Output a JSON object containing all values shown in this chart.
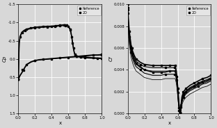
{
  "left": {
    "xlabel": "x",
    "ylabel": "Cp",
    "xlim": [
      0.0,
      1.0
    ],
    "ylim": [
      1.5,
      -1.5
    ],
    "xticks": [
      0.0,
      0.2,
      0.4,
      0.6,
      0.8,
      1.0
    ],
    "yticks": [
      -1.5,
      -1.0,
      -0.5,
      0.0,
      0.5,
      1.0,
      1.5
    ],
    "upper_surface": [
      [
        0.0,
        0.55
      ],
      [
        0.005,
        -0.1
      ],
      [
        0.01,
        -0.45
      ],
      [
        0.02,
        -0.62
      ],
      [
        0.04,
        -0.73
      ],
      [
        0.06,
        -0.77
      ],
      [
        0.08,
        -0.8
      ],
      [
        0.1,
        -0.82
      ],
      [
        0.15,
        -0.85
      ],
      [
        0.2,
        -0.87
      ],
      [
        0.25,
        -0.88
      ],
      [
        0.3,
        -0.89
      ],
      [
        0.35,
        -0.895
      ],
      [
        0.4,
        -0.9
      ],
      [
        0.42,
        -0.905
      ],
      [
        0.44,
        -0.91
      ],
      [
        0.46,
        -0.915
      ],
      [
        0.48,
        -0.92
      ],
      [
        0.5,
        -0.925
      ],
      [
        0.52,
        -0.93
      ],
      [
        0.54,
        -0.935
      ],
      [
        0.56,
        -0.94
      ],
      [
        0.58,
        -0.93
      ],
      [
        0.6,
        -0.9
      ],
      [
        0.62,
        -0.82
      ],
      [
        0.63,
        -0.73
      ],
      [
        0.64,
        -0.6
      ],
      [
        0.65,
        -0.45
      ],
      [
        0.66,
        -0.3
      ],
      [
        0.67,
        -0.18
      ],
      [
        0.68,
        -0.12
      ],
      [
        0.7,
        -0.08
      ],
      [
        0.75,
        -0.06
      ],
      [
        0.8,
        -0.05
      ],
      [
        0.85,
        -0.04
      ],
      [
        0.9,
        -0.03
      ],
      [
        0.95,
        -0.025
      ],
      [
        1.0,
        -0.02
      ]
    ],
    "lower_surface": [
      [
        0.0,
        0.55
      ],
      [
        0.01,
        0.5
      ],
      [
        0.02,
        0.45
      ],
      [
        0.04,
        0.38
      ],
      [
        0.06,
        0.3
      ],
      [
        0.08,
        0.22
      ],
      [
        0.1,
        0.15
      ],
      [
        0.15,
        0.08
      ],
      [
        0.2,
        0.04
      ],
      [
        0.25,
        0.02
      ],
      [
        0.3,
        0.01
      ],
      [
        0.35,
        0.0
      ],
      [
        0.4,
        -0.01
      ],
      [
        0.45,
        -0.02
      ],
      [
        0.5,
        -0.03
      ],
      [
        0.55,
        -0.04
      ],
      [
        0.6,
        -0.05
      ],
      [
        0.65,
        -0.06
      ],
      [
        0.7,
        -0.07
      ],
      [
        0.75,
        -0.08
      ],
      [
        0.8,
        -0.09
      ],
      [
        0.85,
        -0.1
      ],
      [
        0.9,
        -0.11
      ],
      [
        0.95,
        -0.11
      ],
      [
        1.0,
        -0.12
      ]
    ],
    "upper_surface2": [
      [
        0.0,
        0.55
      ],
      [
        0.005,
        -0.08
      ],
      [
        0.01,
        -0.43
      ],
      [
        0.02,
        -0.6
      ],
      [
        0.04,
        -0.71
      ],
      [
        0.06,
        -0.75
      ],
      [
        0.08,
        -0.78
      ],
      [
        0.1,
        -0.8
      ],
      [
        0.15,
        -0.83
      ],
      [
        0.2,
        -0.85
      ],
      [
        0.25,
        -0.86
      ],
      [
        0.3,
        -0.87
      ],
      [
        0.35,
        -0.875
      ],
      [
        0.4,
        -0.88
      ],
      [
        0.42,
        -0.885
      ],
      [
        0.44,
        -0.89
      ],
      [
        0.46,
        -0.895
      ],
      [
        0.48,
        -0.9
      ],
      [
        0.5,
        -0.905
      ],
      [
        0.52,
        -0.91
      ],
      [
        0.54,
        -0.915
      ],
      [
        0.56,
        -0.92
      ],
      [
        0.58,
        -0.91
      ],
      [
        0.6,
        -0.88
      ],
      [
        0.62,
        -0.8
      ],
      [
        0.63,
        -0.71
      ],
      [
        0.64,
        -0.58
      ],
      [
        0.65,
        -0.43
      ],
      [
        0.66,
        -0.28
      ],
      [
        0.67,
        -0.16
      ],
      [
        0.68,
        -0.1
      ],
      [
        0.7,
        -0.06
      ],
      [
        0.75,
        -0.04
      ],
      [
        0.8,
        -0.03
      ],
      [
        0.85,
        -0.02
      ],
      [
        0.9,
        -0.015
      ],
      [
        0.95,
        -0.01
      ],
      [
        1.0,
        -0.005
      ]
    ],
    "lower_surface2": [
      [
        0.0,
        0.55
      ],
      [
        0.01,
        0.51
      ],
      [
        0.02,
        0.46
      ],
      [
        0.04,
        0.39
      ],
      [
        0.06,
        0.31
      ],
      [
        0.08,
        0.23
      ],
      [
        0.1,
        0.16
      ],
      [
        0.15,
        0.09
      ],
      [
        0.2,
        0.05
      ],
      [
        0.25,
        0.03
      ],
      [
        0.3,
        0.02
      ],
      [
        0.35,
        0.01
      ],
      [
        0.4,
        0.0
      ],
      [
        0.45,
        -0.01
      ],
      [
        0.5,
        -0.02
      ],
      [
        0.55,
        -0.03
      ],
      [
        0.6,
        -0.04
      ],
      [
        0.65,
        -0.05
      ],
      [
        0.7,
        -0.06
      ],
      [
        0.75,
        -0.07
      ],
      [
        0.8,
        -0.08
      ],
      [
        0.85,
        -0.09
      ],
      [
        0.9,
        -0.1
      ],
      [
        0.95,
        -0.1
      ],
      [
        1.0,
        -0.11
      ]
    ],
    "ref_x_upper": [
      0.0,
      0.05,
      0.1,
      0.15,
      0.2,
      0.25,
      0.3,
      0.35,
      0.4,
      0.45,
      0.5,
      0.55,
      0.58,
      0.6,
      0.62,
      0.64,
      0.66,
      0.68,
      0.7,
      0.75,
      0.8,
      0.9,
      1.0
    ],
    "ref_y_upper": [
      0.55,
      -0.72,
      -0.82,
      -0.85,
      -0.87,
      -0.88,
      -0.89,
      -0.895,
      -0.9,
      -0.915,
      -0.93,
      -0.935,
      -0.93,
      -0.9,
      -0.82,
      -0.6,
      -0.3,
      -0.12,
      -0.08,
      -0.06,
      -0.05,
      -0.03,
      -0.02
    ],
    "ref_x_lower": [
      0.0,
      0.05,
      0.1,
      0.2,
      0.3,
      0.5,
      0.7,
      0.9,
      1.0
    ],
    "ref_y_lower": [
      0.55,
      0.3,
      0.15,
      0.04,
      0.01,
      -0.03,
      -0.07,
      -0.11,
      -0.12
    ]
  },
  "right": {
    "xlabel": "x",
    "ylabel": "Cf",
    "xlim": [
      0.0,
      1.0
    ],
    "ylim": [
      0.0,
      0.01
    ],
    "xticks": [
      0.0,
      0.2,
      0.4,
      0.6,
      0.8,
      1.0
    ],
    "yticks": [
      0.0,
      0.002,
      0.004,
      0.006,
      0.008,
      0.01
    ],
    "ytick_labels": [
      "0.000",
      "0.002",
      "0.004",
      "0.006",
      "0.008",
      "0.010"
    ],
    "upper1": [
      [
        0.0,
        0.01
      ],
      [
        0.005,
        0.0092
      ],
      [
        0.01,
        0.0085
      ],
      [
        0.02,
        0.0075
      ],
      [
        0.04,
        0.0063
      ],
      [
        0.06,
        0.0057
      ],
      [
        0.08,
        0.0053
      ],
      [
        0.1,
        0.005
      ],
      [
        0.15,
        0.0047
      ],
      [
        0.2,
        0.0045
      ],
      [
        0.3,
        0.0044
      ],
      [
        0.4,
        0.0044
      ],
      [
        0.45,
        0.0044
      ],
      [
        0.5,
        0.0044
      ],
      [
        0.52,
        0.0044
      ],
      [
        0.54,
        0.0044
      ],
      [
        0.56,
        0.0044
      ],
      [
        0.57,
        0.0044
      ],
      [
        0.58,
        0.004
      ],
      [
        0.59,
        0.0034
      ],
      [
        0.6,
        0.0025
      ],
      [
        0.61,
        0.0014
      ],
      [
        0.62,
        0.0005
      ],
      [
        0.625,
        0.0001
      ],
      [
        0.63,
        0.0001
      ],
      [
        0.635,
        0.0003
      ],
      [
        0.64,
        0.0008
      ],
      [
        0.65,
        0.0015
      ],
      [
        0.67,
        0.002
      ],
      [
        0.7,
        0.0023
      ],
      [
        0.75,
        0.0026
      ],
      [
        0.8,
        0.0028
      ],
      [
        0.85,
        0.003
      ],
      [
        0.9,
        0.0032
      ],
      [
        0.95,
        0.0033
      ],
      [
        1.0,
        0.0035
      ]
    ],
    "upper2": [
      [
        0.0,
        0.0097
      ],
      [
        0.005,
        0.0089
      ],
      [
        0.01,
        0.0082
      ],
      [
        0.02,
        0.0072
      ],
      [
        0.04,
        0.0061
      ],
      [
        0.06,
        0.0055
      ],
      [
        0.08,
        0.0051
      ],
      [
        0.1,
        0.0048
      ],
      [
        0.15,
        0.0045
      ],
      [
        0.2,
        0.0043
      ],
      [
        0.3,
        0.0042
      ],
      [
        0.4,
        0.0042
      ],
      [
        0.45,
        0.0042
      ],
      [
        0.5,
        0.0042
      ],
      [
        0.52,
        0.0042
      ],
      [
        0.54,
        0.0042
      ],
      [
        0.56,
        0.0042
      ],
      [
        0.57,
        0.0042
      ],
      [
        0.58,
        0.0038
      ],
      [
        0.59,
        0.0032
      ],
      [
        0.6,
        0.0023
      ],
      [
        0.61,
        0.0012
      ],
      [
        0.62,
        0.0004
      ],
      [
        0.625,
        0.0001
      ],
      [
        0.63,
        0.0001
      ],
      [
        0.635,
        0.0003
      ],
      [
        0.64,
        0.0007
      ],
      [
        0.65,
        0.0013
      ],
      [
        0.67,
        0.0018
      ],
      [
        0.7,
        0.0021
      ],
      [
        0.75,
        0.0024
      ],
      [
        0.8,
        0.0026
      ],
      [
        0.85,
        0.0028
      ],
      [
        0.9,
        0.003
      ],
      [
        0.95,
        0.0031
      ],
      [
        1.0,
        0.0033
      ]
    ],
    "upper3": [
      [
        0.0,
        0.0094
      ],
      [
        0.005,
        0.0086
      ],
      [
        0.01,
        0.0079
      ],
      [
        0.02,
        0.0069
      ],
      [
        0.04,
        0.0058
      ],
      [
        0.06,
        0.0052
      ],
      [
        0.08,
        0.0048
      ],
      [
        0.1,
        0.0045
      ],
      [
        0.15,
        0.0042
      ],
      [
        0.2,
        0.004
      ],
      [
        0.3,
        0.0039
      ],
      [
        0.4,
        0.0039
      ],
      [
        0.45,
        0.0039
      ],
      [
        0.5,
        0.0039
      ],
      [
        0.52,
        0.0039
      ],
      [
        0.54,
        0.0039
      ],
      [
        0.56,
        0.0039
      ],
      [
        0.57,
        0.0039
      ],
      [
        0.58,
        0.0035
      ],
      [
        0.59,
        0.0029
      ],
      [
        0.6,
        0.002
      ],
      [
        0.61,
        0.001
      ],
      [
        0.62,
        0.0003
      ],
      [
        0.625,
        0.0001
      ],
      [
        0.63,
        0.0001
      ],
      [
        0.635,
        0.0002
      ],
      [
        0.64,
        0.0006
      ],
      [
        0.65,
        0.0011
      ],
      [
        0.67,
        0.0016
      ],
      [
        0.7,
        0.0019
      ],
      [
        0.75,
        0.0022
      ],
      [
        0.8,
        0.0024
      ],
      [
        0.85,
        0.0026
      ],
      [
        0.9,
        0.0028
      ],
      [
        0.95,
        0.0029
      ],
      [
        1.0,
        0.0031
      ]
    ],
    "lower1": [
      [
        0.0,
        0.0095
      ],
      [
        0.005,
        0.0087
      ],
      [
        0.01,
        0.008
      ],
      [
        0.02,
        0.007
      ],
      [
        0.04,
        0.0059
      ],
      [
        0.06,
        0.0053
      ],
      [
        0.08,
        0.0049
      ],
      [
        0.1,
        0.0046
      ],
      [
        0.15,
        0.0043
      ],
      [
        0.2,
        0.004
      ],
      [
        0.3,
        0.0038
      ],
      [
        0.4,
        0.0038
      ],
      [
        0.45,
        0.0038
      ],
      [
        0.5,
        0.0039
      ],
      [
        0.52,
        0.0039
      ],
      [
        0.54,
        0.0039
      ],
      [
        0.56,
        0.0039
      ],
      [
        0.57,
        0.0039
      ],
      [
        0.58,
        0.0036
      ],
      [
        0.59,
        0.0031
      ],
      [
        0.6,
        0.0022
      ],
      [
        0.61,
        0.0011
      ],
      [
        0.62,
        0.0003
      ],
      [
        0.625,
        0.0001
      ],
      [
        0.63,
        0.0001
      ],
      [
        0.635,
        0.0002
      ],
      [
        0.64,
        0.0006
      ],
      [
        0.65,
        0.0012
      ],
      [
        0.67,
        0.0017
      ],
      [
        0.7,
        0.002
      ],
      [
        0.75,
        0.0023
      ],
      [
        0.8,
        0.0025
      ],
      [
        0.85,
        0.0027
      ],
      [
        0.9,
        0.0029
      ],
      [
        0.95,
        0.003
      ],
      [
        1.0,
        0.0032
      ]
    ],
    "lower2": [
      [
        0.0,
        0.0092
      ],
      [
        0.005,
        0.0084
      ],
      [
        0.01,
        0.0077
      ],
      [
        0.02,
        0.0067
      ],
      [
        0.04,
        0.0056
      ],
      [
        0.06,
        0.005
      ],
      [
        0.08,
        0.0046
      ],
      [
        0.1,
        0.0043
      ],
      [
        0.15,
        0.004
      ],
      [
        0.2,
        0.0037
      ],
      [
        0.3,
        0.0035
      ],
      [
        0.4,
        0.0035
      ],
      [
        0.45,
        0.0036
      ],
      [
        0.5,
        0.0036
      ],
      [
        0.52,
        0.0036
      ],
      [
        0.54,
        0.0036
      ],
      [
        0.56,
        0.0036
      ],
      [
        0.57,
        0.0036
      ],
      [
        0.58,
        0.0033
      ],
      [
        0.59,
        0.0028
      ],
      [
        0.6,
        0.0019
      ],
      [
        0.61,
        0.0009
      ],
      [
        0.62,
        0.0002
      ],
      [
        0.625,
        0.0001
      ],
      [
        0.63,
        0.0001
      ],
      [
        0.635,
        0.0002
      ],
      [
        0.64,
        0.0005
      ],
      [
        0.65,
        0.001
      ],
      [
        0.67,
        0.0015
      ],
      [
        0.7,
        0.0018
      ],
      [
        0.75,
        0.0021
      ],
      [
        0.8,
        0.0023
      ],
      [
        0.85,
        0.0025
      ],
      [
        0.9,
        0.0027
      ],
      [
        0.95,
        0.0028
      ],
      [
        1.0,
        0.003
      ]
    ],
    "lower3": [
      [
        0.0,
        0.0088
      ],
      [
        0.005,
        0.008
      ],
      [
        0.01,
        0.0073
      ],
      [
        0.02,
        0.0063
      ],
      [
        0.04,
        0.0052
      ],
      [
        0.06,
        0.0046
      ],
      [
        0.08,
        0.0042
      ],
      [
        0.1,
        0.0039
      ],
      [
        0.15,
        0.0036
      ],
      [
        0.2,
        0.0033
      ],
      [
        0.3,
        0.0031
      ],
      [
        0.4,
        0.0031
      ],
      [
        0.45,
        0.0032
      ],
      [
        0.5,
        0.0032
      ],
      [
        0.52,
        0.0032
      ],
      [
        0.54,
        0.0032
      ],
      [
        0.56,
        0.0032
      ],
      [
        0.57,
        0.0032
      ],
      [
        0.58,
        0.0029
      ],
      [
        0.59,
        0.0024
      ],
      [
        0.6,
        0.0016
      ],
      [
        0.61,
        0.0007
      ],
      [
        0.62,
        0.0002
      ],
      [
        0.625,
        0.0001
      ],
      [
        0.63,
        0.0001
      ],
      [
        0.635,
        0.0001
      ],
      [
        0.64,
        0.0004
      ],
      [
        0.65,
        0.0008
      ],
      [
        0.67,
        0.0012
      ],
      [
        0.7,
        0.0015
      ],
      [
        0.75,
        0.0018
      ],
      [
        0.8,
        0.002
      ],
      [
        0.85,
        0.0022
      ],
      [
        0.9,
        0.0024
      ],
      [
        0.95,
        0.0025
      ],
      [
        1.0,
        0.0027
      ]
    ],
    "ref_x": [
      0.0,
      0.02,
      0.05,
      0.1,
      0.2,
      0.3,
      0.4,
      0.5,
      0.57,
      0.59,
      0.61,
      0.625,
      0.64,
      0.66,
      0.7,
      0.8,
      0.9,
      1.0
    ],
    "ref_y_u": [
      0.01,
      0.0075,
      0.006,
      0.005,
      0.0045,
      0.0044,
      0.0044,
      0.0044,
      0.0044,
      0.0034,
      0.0005,
      0.0001,
      0.0008,
      0.002,
      0.0023,
      0.0028,
      0.0032,
      0.0035
    ],
    "ref_y_l": [
      0.0095,
      0.007,
      0.0055,
      0.0046,
      0.004,
      0.0038,
      0.0038,
      0.0039,
      0.0039,
      0.0031,
      0.0003,
      0.0001,
      0.0006,
      0.0017,
      0.002,
      0.0025,
      0.0029,
      0.0032
    ]
  },
  "bg_color": "#d8d8d8",
  "grid_color": "#ffffff",
  "line_color": "black"
}
